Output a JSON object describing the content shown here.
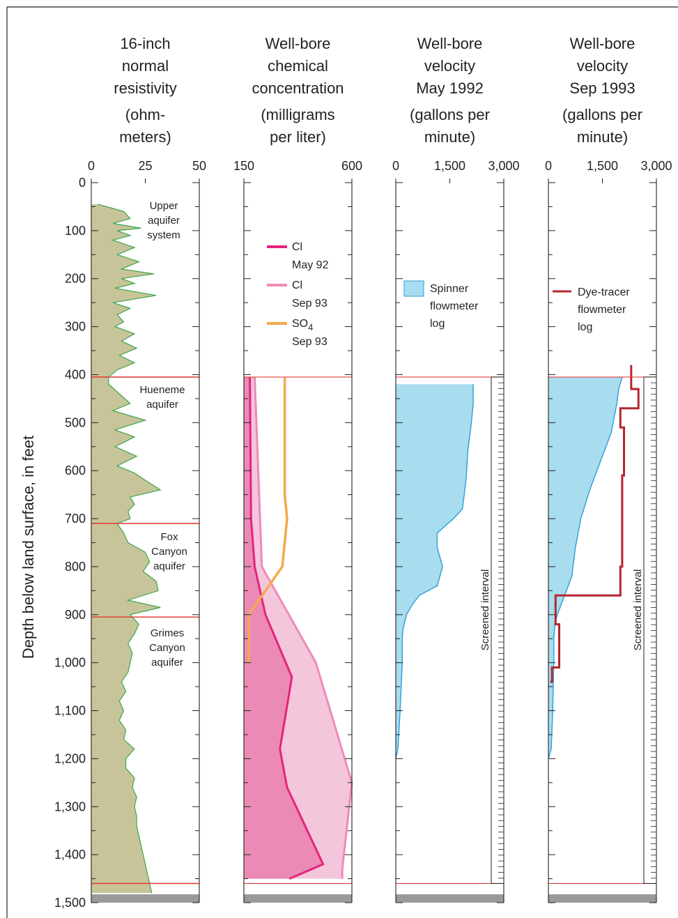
{
  "chart_data": {
    "type": "line",
    "ylabel": "Depth below land surface, in feet",
    "ylim": [
      0,
      1500
    ],
    "depth_tick_labels": [
      "0",
      "100",
      "200",
      "300",
      "400",
      "500",
      "600",
      "700",
      "800",
      "900",
      "1,000",
      "1,100",
      "1,200",
      "1,300",
      "1,400",
      "1,500"
    ],
    "aquifer_labels": [
      {
        "lines": [
          "Upper",
          "aquifer",
          "system"
        ]
      },
      {
        "lines": [
          "Hueneme",
          "aquifer"
        ]
      },
      {
        "lines": [
          "Fox",
          "Canyon",
          "aquifer"
        ]
      },
      {
        "lines": [
          "Grimes",
          "Canyon",
          "aquifer"
        ]
      }
    ],
    "aquifer_boundaries": [
      405,
      710,
      905,
      1460
    ],
    "screened_interval_label": "Screened interval",
    "screened_interval": [
      405,
      1460
    ],
    "panels": [
      {
        "title": [
          "16-inch",
          "normal",
          "resistivity"
        ],
        "units": [
          "(ohm-",
          "meters)"
        ],
        "xlim": [
          0,
          50
        ],
        "x_tick_labels": [
          "0",
          "25",
          "50"
        ],
        "fill_color": "#c8c49a",
        "series": [
          {
            "type": "area",
            "depth": [
              45,
              60,
              75,
              85,
              95,
              100,
              110,
              120,
              135,
              150,
              165,
              180,
              190,
              200,
              210,
              220,
              235,
              250,
              262,
              275,
              290,
              300,
              315,
              330,
              345,
              360,
              375,
              390,
              405,
              420,
              440,
              460,
              475,
              495,
              515,
              530,
              550,
              570,
              590,
              605,
              620,
              640,
              655,
              670,
              685,
              700,
              710,
              730,
              750,
              770,
              790,
              810,
              830,
              850,
              870,
              885,
              900,
              920,
              940,
              960,
              980,
              1000,
              1020,
              1040,
              1060,
              1080,
              1100,
              1120,
              1140,
              1160,
              1180,
              1200,
              1220,
              1240,
              1260,
              1280,
              1300,
              1320,
              1340,
              1360,
              1380,
              1400,
              1420,
              1440,
              1460,
              1480
            ],
            "resistivity": [
              3,
              15,
              18,
              10,
              23,
              12,
              18,
              10,
              20,
              12,
              22,
              14,
              29,
              14,
              20,
              11,
              30,
              10,
              18,
              12,
              15,
              11,
              20,
              14,
              21,
              13,
              20,
              12,
              8,
              8,
              13,
              18,
              10,
              25,
              11,
              20,
              11,
              21,
              12,
              20,
              25,
              32,
              18,
              20,
              17,
              18,
              12,
              15,
              17,
              25,
              27,
              24,
              30,
              31,
              17,
              32,
              18,
              22,
              20,
              17,
              19,
              18,
              17,
              14,
              16,
              13,
              15,
              13,
              16,
              15,
              20,
              16,
              16,
              20,
              19,
              21,
              20,
              21,
              21,
              22,
              23,
              24,
              25,
              26,
              27,
              28
            ]
          }
        ]
      },
      {
        "title": [
          "Well-bore",
          "chemical",
          "concentration"
        ],
        "units": [
          "(milligrams",
          "per liter)"
        ],
        "xlim": [
          150,
          600
        ],
        "x_tick_labels": [
          "150",
          "600"
        ],
        "legend": [
          {
            "line1": "Cl",
            "line2": "May 92",
            "color": "#e5247a"
          },
          {
            "line1": "Cl",
            "line2": "Sep 93",
            "color": "#ef8ab8"
          },
          {
            "line1": "SO",
            "subscript": "4",
            "line2": "Sep 93",
            "color": "#f3a94e"
          }
        ],
        "series": [
          {
            "name": "Cl May 92",
            "depth": [
              405,
              700,
              800,
              900,
              1030,
              1180,
              1260,
              1420,
              1450
            ],
            "concentration": [
              175,
              180,
              195,
              240,
              350,
              300,
              330,
              480,
              340
            ]
          },
          {
            "name": "Cl Sep 93",
            "depth": [
              405,
              800,
              1000,
              1250,
              1430,
              1450
            ],
            "concentration": [
              195,
              225,
              450,
              600,
              560,
              560
            ]
          },
          {
            "name": "SO4 Sep 93",
            "depth": [
              405,
              650,
              700,
              800,
              850,
              900,
              1000
            ],
            "concentration": [
              320,
              320,
              330,
              310,
              240,
              170,
              170
            ]
          }
        ]
      },
      {
        "title": [
          "Well-bore",
          "velocity",
          "May 1992"
        ],
        "units": [
          "(gallons per",
          "minute)"
        ],
        "xlim": [
          0,
          3000
        ],
        "x_tick_labels": [
          "0",
          "1,500",
          "3,000"
        ],
        "legend": [
          {
            "lines": [
              "Spinner",
              "flowmeter",
              "log"
            ],
            "color": "#a8dcef"
          }
        ],
        "series": [
          {
            "name": "Spinner flowmeter log",
            "depth": [
              420,
              460,
              500,
              560,
              620,
              680,
              700,
              730,
              760,
              800,
              840,
              860,
              880,
              900,
              915,
              930,
              950,
              1000,
              1100,
              1180,
              1200
            ],
            "velocity": [
              2150,
              2150,
              2100,
              2000,
              1950,
              1850,
              1600,
              1150,
              1150,
              1300,
              1150,
              650,
              450,
              300,
              250,
              200,
              180,
              180,
              120,
              60,
              0
            ]
          }
        ]
      },
      {
        "title": [
          "Well-bore",
          "velocity",
          "Sep 1993"
        ],
        "units": [
          "(gallons per",
          "minute)"
        ],
        "xlim": [
          0,
          3000
        ],
        "x_tick_labels": [
          "0",
          "1,500",
          "3,000"
        ],
        "legend": [
          {
            "lines": [
              "Dye-tracer",
              "flowmeter",
              "log"
            ],
            "color": "#b5262e"
          }
        ],
        "series": [
          {
            "name": "Spinner flowmeter log",
            "depth": [
              405,
              430,
              460,
              520,
              580,
              640,
              700,
              760,
              820,
              860,
              880,
              900,
              920,
              950,
              1000,
              1100,
              1180,
              1200
            ],
            "velocity": [
              2050,
              1950,
              1900,
              1750,
              1450,
              1150,
              900,
              750,
              650,
              450,
              350,
              250,
              180,
              150,
              150,
              120,
              80,
              0
            ]
          },
          {
            "name": "Dye-tracer flowmeter log",
            "depth": [
              380,
              430,
              470,
              510,
              610,
              800,
              860,
              920,
              1010,
              1040
            ],
            "velocity": [
              2300,
              2500,
              2000,
              2100,
              2050,
              2000,
              200,
              300,
              100,
              50
            ]
          }
        ]
      }
    ]
  }
}
